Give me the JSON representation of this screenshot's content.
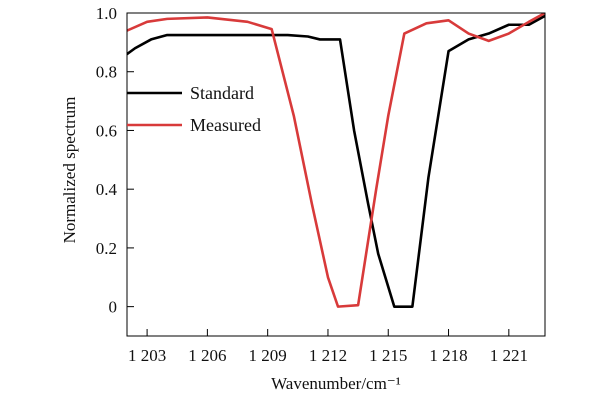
{
  "chart_data": {
    "type": "line",
    "title": "",
    "xlabel": "Wavenumber/cm⁻¹",
    "ylabel": "Normalized spectrum",
    "xlim": [
      1202.0,
      1222.8
    ],
    "ylim": [
      -0.1,
      1.0
    ],
    "xticks": [
      1203,
      1206,
      1209,
      1212,
      1215,
      1218,
      1221
    ],
    "xtick_labels": [
      "1 203",
      "1 206",
      "1 209",
      "1 212",
      "1 215",
      "1 218",
      "1 221"
    ],
    "yticks": [
      0,
      0.2,
      0.4,
      0.6,
      0.8,
      1.0
    ],
    "ytick_labels": [
      "0",
      "0.2",
      "0.4",
      "0.6",
      "0.8",
      "1.0"
    ],
    "legend_position": "upper-left",
    "series": [
      {
        "name": "Standard",
        "color": "#000000",
        "points": [
          [
            1202.0,
            0.86
          ],
          [
            1202.4,
            0.88
          ],
          [
            1203.2,
            0.91
          ],
          [
            1204.0,
            0.925
          ],
          [
            1206.0,
            0.925
          ],
          [
            1208.0,
            0.925
          ],
          [
            1210.0,
            0.925
          ],
          [
            1211.0,
            0.92
          ],
          [
            1211.6,
            0.91
          ],
          [
            1212.6,
            0.91
          ],
          [
            1213.3,
            0.6
          ],
          [
            1214.0,
            0.35
          ],
          [
            1214.5,
            0.18
          ],
          [
            1215.3,
            0.0
          ],
          [
            1216.2,
            0.0
          ],
          [
            1217.0,
            0.44
          ],
          [
            1218.0,
            0.87
          ],
          [
            1219.0,
            0.91
          ],
          [
            1220.0,
            0.93
          ],
          [
            1221.0,
            0.96
          ],
          [
            1222.0,
            0.96
          ],
          [
            1222.8,
            0.99
          ]
        ]
      },
      {
        "name": "Measured",
        "color": "#d83a3a",
        "points": [
          [
            1202.0,
            0.94
          ],
          [
            1203.0,
            0.97
          ],
          [
            1204.0,
            0.98
          ],
          [
            1206.0,
            0.985
          ],
          [
            1208.0,
            0.97
          ],
          [
            1209.2,
            0.945
          ],
          [
            1210.3,
            0.65
          ],
          [
            1211.2,
            0.35
          ],
          [
            1212.0,
            0.1
          ],
          [
            1212.5,
            0.0
          ],
          [
            1213.5,
            0.005
          ],
          [
            1214.4,
            0.4
          ],
          [
            1215.0,
            0.65
          ],
          [
            1215.8,
            0.93
          ],
          [
            1216.9,
            0.965
          ],
          [
            1218.0,
            0.975
          ],
          [
            1219.0,
            0.93
          ],
          [
            1220.0,
            0.905
          ],
          [
            1221.0,
            0.93
          ],
          [
            1222.0,
            0.97
          ],
          [
            1222.8,
            1.0
          ]
        ]
      }
    ]
  }
}
